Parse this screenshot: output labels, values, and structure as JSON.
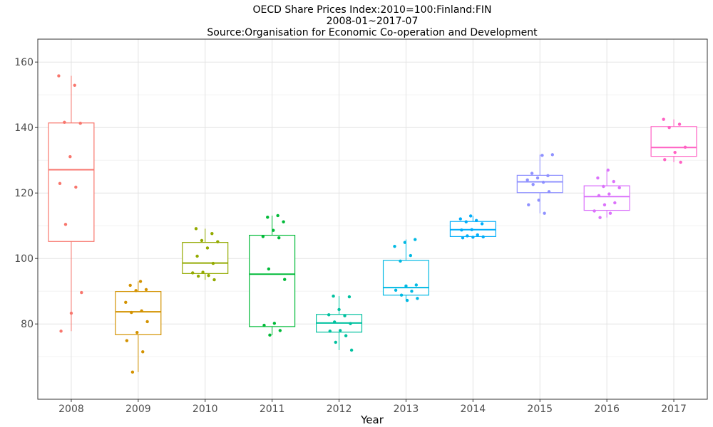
{
  "chart_data": {
    "type": "box",
    "title": [
      "OECD Share Prices Index:2010=100:Finland:FIN",
      "2008-01~2017-07",
      "Source:Organisation for Economic Co-operation and Development"
    ],
    "xlabel": "Year",
    "ylabel": "",
    "ylim": [
      57,
      167
    ],
    "yticks": [
      80,
      100,
      120,
      140,
      160
    ],
    "grid": true,
    "legend": "none",
    "categories": [
      "2008",
      "2009",
      "2010",
      "2011",
      "2012",
      "2013",
      "2014",
      "2015",
      "2016",
      "2017"
    ],
    "colors": [
      "#F8766D",
      "#D39200",
      "#93AA00",
      "#00BA38",
      "#00C19F",
      "#00B9E3",
      "#00ADFA",
      "#8F91FF",
      "#DB72FB",
      "#FF61C3"
    ],
    "boxes": [
      {
        "category": "2008",
        "min": 77.8,
        "q1": 105.2,
        "median": 127.1,
        "q3": 141.4,
        "max": 155.8,
        "color": "#F8766D",
        "points": [
          155.8,
          152.9,
          141.6,
          141.3,
          131.1,
          122.9,
          121.8,
          110.4,
          89.6,
          83.3,
          77.8
        ]
      },
      {
        "category": "2009",
        "min": 65.3,
        "q1": 76.7,
        "median": 83.7,
        "q3": 89.9,
        "max": 93.0,
        "color": "#D39200",
        "points": [
          93.0,
          91.8,
          90.5,
          90.2,
          86.6,
          84.0,
          83.5,
          80.7,
          77.4,
          74.9,
          71.5,
          65.3
        ]
      },
      {
        "category": "2010",
        "min": 93.5,
        "q1": 95.4,
        "median": 98.6,
        "q3": 104.9,
        "max": 109.1,
        "color": "#93AA00",
        "points": [
          109.1,
          107.6,
          105.5,
          105.1,
          103.2,
          100.7,
          98.5,
          95.8,
          95.6,
          94.8,
          94.6,
          93.5
        ]
      },
      {
        "category": "2011",
        "min": 76.6,
        "q1": 79.2,
        "median": 95.2,
        "q3": 107.1,
        "max": 113.1,
        "color": "#00BA38",
        "points": [
          113.1,
          112.6,
          111.2,
          108.6,
          106.7,
          106.3,
          96.8,
          93.6,
          80.2,
          79.6,
          78.0,
          76.6
        ]
      },
      {
        "category": "2012",
        "min": 72.0,
        "q1": 77.5,
        "median": 80.3,
        "q3": 82.9,
        "max": 88.5,
        "color": "#00C19F",
        "points": [
          88.5,
          88.3,
          84.4,
          82.8,
          82.5,
          80.6,
          80.1,
          78.0,
          77.8,
          76.4,
          74.4,
          72.0
        ]
      },
      {
        "category": "2013",
        "min": 87.2,
        "q1": 88.8,
        "median": 91.1,
        "q3": 99.4,
        "max": 105.8,
        "color": "#00B9E3",
        "points": [
          105.8,
          104.9,
          103.7,
          100.9,
          99.2,
          91.9,
          91.6,
          90.3,
          90.0,
          88.8,
          87.8,
          87.2
        ]
      },
      {
        "category": "2014",
        "min": 106.3,
        "q1": 106.7,
        "median": 108.8,
        "q3": 111.3,
        "max": 113.0,
        "color": "#00ADFA",
        "points": [
          113.0,
          112.1,
          111.6,
          111.2,
          110.6,
          108.8,
          108.7,
          107.2,
          106.9,
          106.6,
          106.5,
          106.3
        ]
      },
      {
        "category": "2015",
        "min": 113.8,
        "q1": 120.1,
        "median": 123.4,
        "q3": 125.4,
        "max": 131.7,
        "color": "#8F91FF",
        "points": [
          131.7,
          131.5,
          126.0,
          125.3,
          124.6,
          124.0,
          123.3,
          122.6,
          120.4,
          117.8,
          116.4,
          113.8
        ]
      },
      {
        "category": "2016",
        "min": 112.5,
        "q1": 114.7,
        "median": 118.9,
        "q3": 122.2,
        "max": 127.0,
        "color": "#DB72FB",
        "points": [
          127.0,
          124.6,
          123.5,
          122.0,
          121.6,
          119.7,
          119.2,
          117.0,
          116.4,
          114.5,
          113.8,
          112.5
        ]
      },
      {
        "category": "2017",
        "min": 129.4,
        "q1": 131.2,
        "median": 133.9,
        "q3": 140.3,
        "max": 142.5,
        "color": "#FF61C3",
        "points": [
          142.5,
          141.0,
          140.0,
          134.0,
          132.4,
          130.2,
          129.4
        ]
      }
    ]
  }
}
